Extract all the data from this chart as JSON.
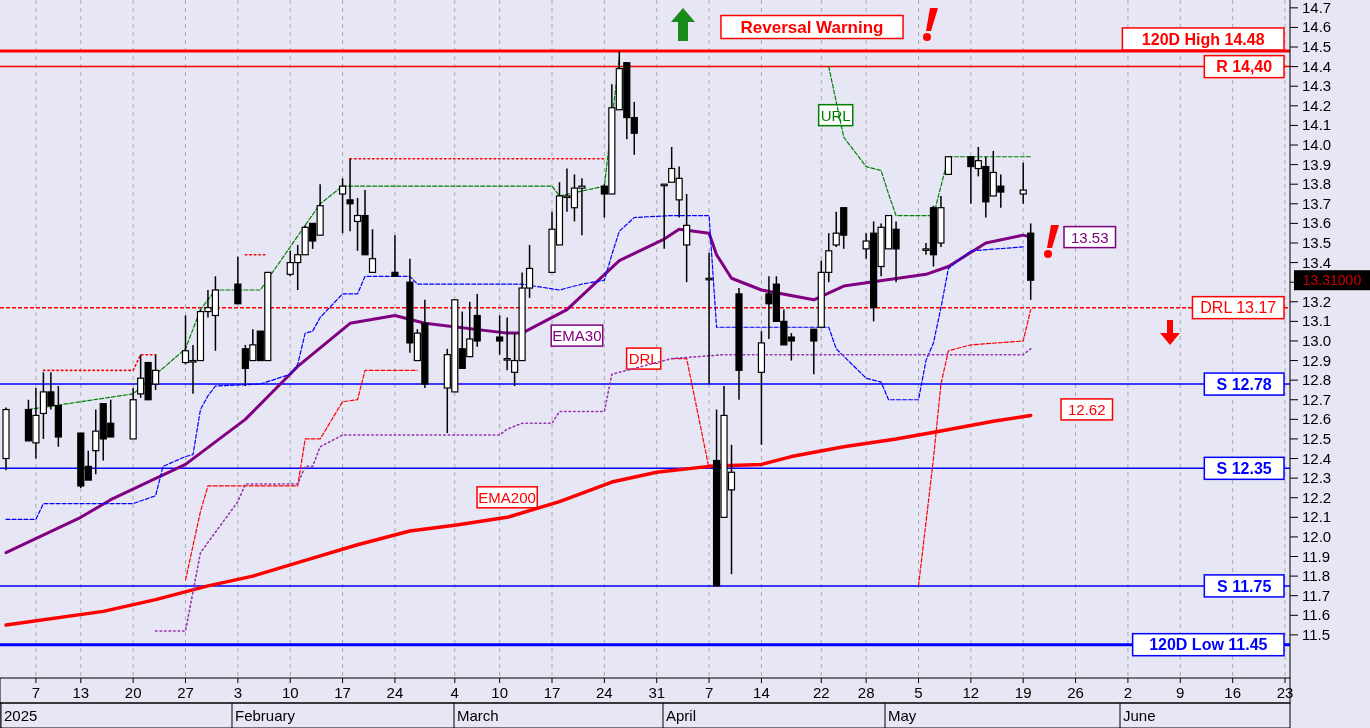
{
  "chart_data": {
    "type": "candlestick",
    "x": [
      "2025-01-03",
      "2025-01-06",
      "2025-01-07",
      "2025-01-08",
      "2025-01-09",
      "2025-01-10",
      "2025-01-13",
      "2025-01-14",
      "2025-01-15",
      "2025-01-16",
      "2025-01-17",
      "2025-01-20",
      "2025-01-21",
      "2025-01-22",
      "2025-01-23",
      "2025-01-27",
      "2025-01-28",
      "2025-01-29",
      "2025-01-30",
      "2025-01-31",
      "2025-02-03",
      "2025-02-04",
      "2025-02-05",
      "2025-02-06",
      "2025-02-07",
      "2025-02-10",
      "2025-02-11",
      "2025-02-12",
      "2025-02-13",
      "2025-02-14",
      "2025-02-17",
      "2025-02-18",
      "2025-02-19",
      "2025-02-20",
      "2025-02-21",
      "2025-02-24",
      "2025-02-26",
      "2025-02-27",
      "2025-02-28",
      "2025-03-03",
      "2025-03-04",
      "2025-03-05",
      "2025-03-06",
      "2025-03-07",
      "2025-03-10",
      "2025-03-11",
      "2025-03-12",
      "2025-03-13",
      "2025-03-14",
      "2025-03-17",
      "2025-03-18",
      "2025-03-19",
      "2025-03-20",
      "2025-03-21",
      "2025-03-24",
      "2025-03-25",
      "2025-03-26",
      "2025-03-27",
      "2025-03-28",
      "2025-04-01",
      "2025-04-02",
      "2025-04-03",
      "2025-04-04",
      "2025-04-07",
      "2025-04-08",
      "2025-04-09",
      "2025-04-10",
      "2025-04-11",
      "2025-04-14",
      "2025-04-15",
      "2025-04-16",
      "2025-04-17",
      "2025-04-18",
      "2025-04-21",
      "2025-04-22",
      "2025-04-23",
      "2025-04-24",
      "2025-04-25",
      "2025-04-28",
      "2025-04-29",
      "2025-04-30",
      "2025-05-01",
      "2025-05-02",
      "2025-05-06",
      "2025-05-07",
      "2025-05-08",
      "2025-05-09",
      "2025-05-12",
      "2025-05-13",
      "2025-05-14",
      "2025-05-15",
      "2025-05-16",
      "2025-05-19",
      "2025-05-20"
    ],
    "ohlc": [
      [
        12.4,
        12.66,
        12.34,
        12.65
      ],
      [
        12.65,
        12.7,
        12.49,
        12.49
      ],
      [
        12.48,
        12.76,
        12.4,
        12.62
      ],
      [
        12.63,
        12.84,
        12.5,
        12.74
      ],
      [
        12.74,
        12.84,
        12.65,
        12.67
      ],
      [
        12.67,
        12.77,
        12.46,
        12.51
      ],
      [
        12.53,
        12.53,
        12.25,
        12.26
      ],
      [
        12.36,
        12.44,
        12.29,
        12.29
      ],
      [
        12.44,
        12.65,
        12.32,
        12.54
      ],
      [
        12.68,
        12.68,
        12.39,
        12.5
      ],
      [
        12.58,
        12.7,
        12.51,
        12.51
      ],
      [
        12.5,
        12.76,
        12.5,
        12.7
      ],
      [
        12.73,
        12.93,
        12.71,
        12.81
      ],
      [
        12.89,
        12.89,
        12.7,
        12.7
      ],
      [
        12.78,
        12.93,
        12.75,
        12.85
      ],
      [
        12.89,
        13.13,
        12.88,
        12.95
      ],
      [
        12.9,
        12.98,
        12.73,
        12.9
      ],
      [
        12.9,
        13.16,
        12.9,
        13.15
      ],
      [
        13.15,
        13.26,
        13.12,
        13.17
      ],
      [
        13.13,
        13.33,
        12.95,
        13.26
      ],
      [
        13.29,
        13.43,
        13.19,
        13.19
      ],
      [
        12.96,
        12.98,
        12.77,
        12.86
      ],
      [
        12.9,
        13.06,
        12.9,
        12.98
      ],
      [
        13.05,
        13.05,
        12.9,
        12.9
      ],
      [
        12.9,
        13.35,
        12.9,
        13.35
      ],
      [
        13.34,
        13.46,
        13.33,
        13.4
      ],
      [
        13.4,
        13.49,
        13.26,
        13.44
      ],
      [
        13.44,
        13.59,
        13.44,
        13.58
      ],
      [
        13.6,
        13.6,
        13.47,
        13.51
      ],
      [
        13.54,
        13.8,
        13.54,
        13.69
      ],
      [
        13.75,
        13.83,
        13.55,
        13.79
      ],
      [
        13.72,
        13.93,
        13.56,
        13.7
      ],
      [
        13.61,
        13.73,
        13.46,
        13.64
      ],
      [
        13.64,
        13.77,
        13.44,
        13.44
      ],
      [
        13.35,
        13.57,
        13.35,
        13.42
      ],
      [
        13.35,
        13.54,
        13.33,
        13.33
      ],
      [
        13.3,
        13.42,
        12.94,
        12.99
      ],
      [
        12.9,
        13.06,
        12.9,
        13.04
      ],
      [
        13.09,
        13.21,
        12.76,
        12.78
      ],
      [
        12.76,
        12.96,
        12.53,
        12.93
      ],
      [
        12.74,
        13.21,
        12.74,
        13.21
      ],
      [
        12.96,
        13.15,
        12.86,
        12.86
      ],
      [
        12.92,
        13.2,
        12.92,
        13.01
      ],
      [
        13.13,
        13.24,
        12.97,
        13.0
      ],
      [
        13.02,
        13.13,
        12.93,
        13.0
      ],
      [
        12.91,
        13.12,
        12.85,
        12.91
      ],
      [
        12.84,
        13.04,
        12.77,
        12.9
      ],
      [
        12.9,
        13.35,
        12.9,
        13.27
      ],
      [
        13.27,
        13.49,
        13.22,
        13.37
      ],
      [
        13.35,
        13.66,
        13.35,
        13.57
      ],
      [
        13.49,
        13.81,
        13.49,
        13.74
      ],
      [
        13.74,
        13.88,
        13.66,
        13.74
      ],
      [
        13.68,
        13.85,
        13.61,
        13.78
      ],
      [
        13.78,
        13.83,
        13.54,
        13.79
      ],
      [
        13.79,
        13.8,
        13.63,
        13.75
      ],
      [
        13.75,
        14.31,
        13.75,
        14.19
      ],
      [
        14.18,
        14.48,
        14.18,
        14.39
      ],
      [
        14.42,
        14.42,
        14.03,
        14.14
      ],
      [
        14.14,
        14.22,
        13.95,
        14.06
      ],
      [
        13.8,
        13.8,
        13.47,
        13.8
      ],
      [
        13.81,
        13.99,
        13.81,
        13.88
      ],
      [
        13.72,
        13.89,
        13.63,
        13.83
      ],
      [
        13.49,
        13.75,
        13.3,
        13.59
      ],
      [
        13.32,
        13.45,
        12.78,
        13.32
      ],
      [
        12.39,
        12.65,
        11.75,
        11.75
      ],
      [
        12.1,
        12.77,
        12.1,
        12.62
      ],
      [
        12.24,
        12.47,
        11.81,
        12.33
      ],
      [
        13.24,
        13.27,
        12.7,
        12.85
      ],
      [
        12.84,
        13.05,
        12.47,
        12.99
      ],
      [
        13.24,
        13.33,
        13.01,
        13.19
      ],
      [
        13.29,
        13.33,
        13.1,
        13.1
      ],
      [
        13.1,
        13.16,
        12.98,
        12.98
      ],
      [
        13.02,
        13.04,
        12.9,
        13.0
      ],
      [
        13.06,
        13.06,
        12.83,
        13.0
      ],
      [
        13.07,
        13.41,
        13.07,
        13.35
      ],
      [
        13.35,
        13.55,
        13.3,
        13.46
      ],
      [
        13.49,
        13.66,
        13.48,
        13.55
      ],
      [
        13.68,
        13.68,
        13.47,
        13.54
      ],
      [
        13.47,
        13.55,
        13.42,
        13.51
      ],
      [
        13.55,
        13.61,
        13.1,
        13.17
      ],
      [
        13.38,
        13.6,
        13.33,
        13.58
      ],
      [
        13.47,
        13.64,
        13.47,
        13.64
      ],
      [
        13.57,
        13.61,
        13.3,
        13.47
      ],
      [
        13.47,
        13.5,
        13.44,
        13.47
      ],
      [
        13.68,
        13.69,
        13.38,
        13.44
      ],
      [
        13.5,
        13.74,
        13.48,
        13.68
      ],
      [
        13.85,
        13.94,
        13.85,
        13.94
      ],
      [
        13.94,
        13.94,
        13.7,
        13.89
      ],
      [
        13.88,
        13.99,
        13.84,
        13.92
      ],
      [
        13.89,
        13.94,
        13.63,
        13.71
      ],
      [
        13.74,
        13.97,
        13.74,
        13.86
      ],
      [
        13.79,
        13.85,
        13.68,
        13.76
      ],
      [
        13.75,
        13.91,
        13.7,
        13.77
      ],
      [
        13.55,
        13.6,
        13.21,
        13.31
      ]
    ],
    "series": [
      {
        "name": "EMA30",
        "type": "line",
        "color": "#800080",
        "line_style": "solid",
        "x": [
          "2025-01-03",
          "2025-01-13",
          "2025-01-17",
          "2025-01-27",
          "2025-02-04",
          "2025-02-11",
          "2025-02-18",
          "2025-02-24",
          "2025-02-28",
          "2025-03-11",
          "2025-03-13",
          "2025-03-19",
          "2025-03-26",
          "2025-04-01",
          "2025-04-03",
          "2025-04-07",
          "2025-04-08",
          "2025-04-10",
          "2025-04-14",
          "2025-04-21",
          "2025-04-25",
          "2025-05-06",
          "2025-05-09",
          "2025-05-14",
          "2025-05-19",
          "2025-05-20"
        ],
        "values": [
          11.92,
          12.1,
          12.19,
          12.37,
          12.6,
          12.87,
          13.09,
          13.13,
          13.09,
          13.04,
          13.04,
          13.16,
          13.41,
          13.52,
          13.57,
          13.55,
          13.44,
          13.32,
          13.26,
          13.21,
          13.28,
          13.34,
          13.38,
          13.5,
          13.54,
          13.53
        ]
      },
      {
        "name": "EMA200",
        "type": "line",
        "color": "#ff0000",
        "line_style": "solid",
        "x": [
          "2025-01-03",
          "2025-01-16",
          "2025-01-23",
          "2025-01-30",
          "2025-02-05",
          "2025-02-12",
          "2025-02-19",
          "2025-02-26",
          "2025-03-04",
          "2025-03-11",
          "2025-03-18",
          "2025-03-25",
          "2025-03-31",
          "2025-04-07",
          "2025-04-14",
          "2025-04-18",
          "2025-04-25",
          "2025-05-02",
          "2025-05-08",
          "2025-05-15",
          "2025-05-20"
        ],
        "values": [
          11.55,
          11.62,
          11.68,
          11.75,
          11.8,
          11.88,
          11.96,
          12.03,
          12.06,
          12.1,
          12.18,
          12.28,
          12.33,
          12.36,
          12.37,
          12.41,
          12.46,
          12.5,
          12.54,
          12.59,
          12.62
        ]
      },
      {
        "name": "URL",
        "type": "line",
        "color": "#008000",
        "line_style": "dashed",
        "x": [
          "2025-01-06",
          "2025-01-20",
          "2025-01-27",
          "2025-01-29",
          "2025-01-31",
          "2025-02-06",
          "2025-02-12",
          "2025-02-14",
          "2025-02-17",
          "2025-03-17",
          "2025-03-18",
          "2025-03-24",
          "2025-03-26",
          "2025-03-27",
          "2025-04-23",
          "2025-04-25",
          "2025-04-28",
          "2025-04-30",
          "2025-05-01",
          "2025-05-02",
          "2025-05-07",
          "2025-05-09",
          "2025-05-20"
        ],
        "values": [
          12.65,
          12.73,
          12.96,
          13.16,
          13.26,
          13.26,
          13.59,
          13.7,
          13.79,
          13.79,
          13.74,
          13.79,
          14.45,
          null,
          14.4,
          14.04,
          13.89,
          13.87,
          13.75,
          13.64,
          13.64,
          13.94,
          13.94
        ]
      },
      {
        "name": "DRL",
        "type": "line",
        "color": "#ff0000",
        "line_style": "dashed",
        "x": [
          "2025-01-27",
          "2025-01-29",
          "2025-01-30",
          "2025-02-11",
          "2025-02-12",
          "2025-02-14",
          "2025-02-17",
          "2025-02-19",
          "2025-02-20",
          "2025-02-27",
          "2025-02-28",
          "2025-03-03",
          "2025-04-02",
          "2025-04-04",
          "2025-04-07",
          "2025-04-08",
          "2025-05-05",
          "2025-05-07",
          "2025-05-08",
          "2025-05-09",
          "2025-05-12",
          "2025-05-19",
          "2025-05-20"
        ],
        "values": [
          11.78,
          12.13,
          12.26,
          12.26,
          12.5,
          12.5,
          12.69,
          12.7,
          12.85,
          12.85,
          null,
          null,
          12.91,
          12.91,
          12.35,
          null,
          11.75,
          12.4,
          12.78,
          12.95,
          12.98,
          13.0,
          13.16
        ]
      },
      {
        "type": "line",
        "color": "#0000ff",
        "line_style": "dashed",
        "x": [
          "2025-01-03",
          "2025-01-07",
          "2025-01-08",
          "2025-01-20",
          "2025-01-23",
          "2025-01-24",
          "2025-01-27",
          "2025-01-28",
          "2025-01-29",
          "2025-01-30",
          "2025-01-31",
          "2025-02-06",
          "2025-02-10",
          "2025-02-11",
          "2025-02-12",
          "2025-02-13",
          "2025-02-14",
          "2025-02-17",
          "2025-02-19",
          "2025-02-20",
          "2025-02-26",
          "2025-02-27",
          "2025-03-13",
          "2025-03-18",
          "2025-03-21",
          "2025-03-24",
          "2025-03-25",
          "2025-03-26",
          "2025-03-28",
          "2025-04-02",
          "2025-04-07",
          "2025-04-08",
          "2025-04-23",
          "2025-04-24",
          "2025-04-28",
          "2025-04-30",
          "2025-05-01",
          "2025-05-05",
          "2025-05-06",
          "2025-05-07",
          "2025-05-08",
          "2025-05-09",
          "2025-05-12",
          "2025-05-19"
        ],
        "values": [
          12.09,
          12.09,
          12.17,
          12.17,
          12.21,
          12.36,
          12.41,
          12.42,
          12.65,
          12.72,
          12.77,
          12.78,
          12.83,
          12.88,
          13.04,
          13.05,
          13.12,
          13.24,
          13.24,
          13.33,
          13.33,
          13.29,
          13.29,
          13.26,
          13.29,
          13.31,
          13.44,
          13.56,
          13.63,
          13.64,
          13.64,
          13.07,
          13.07,
          12.96,
          12.81,
          12.79,
          12.7,
          12.7,
          12.9,
          12.99,
          13.17,
          13.37,
          13.46,
          13.48
        ]
      },
      {
        "type": "line",
        "color": "#9933aa",
        "line_style": "dotted",
        "x": [
          "2025-01-23",
          "2025-01-27",
          "2025-01-29",
          "2025-02-03",
          "2025-02-04",
          "2025-02-11",
          "2025-02-12",
          "2025-02-13",
          "2025-02-14",
          "2025-02-17",
          "2025-03-10",
          "2025-03-11",
          "2025-03-13",
          "2025-03-17",
          "2025-03-18",
          "2025-03-24",
          "2025-03-25",
          "2025-04-02",
          "2025-04-09",
          "2025-05-19",
          "2025-05-20"
        ],
        "values": [
          11.52,
          11.52,
          11.92,
          12.18,
          12.27,
          12.27,
          12.36,
          12.36,
          12.46,
          12.52,
          12.52,
          12.55,
          12.58,
          12.58,
          12.64,
          12.64,
          12.83,
          12.91,
          12.93,
          12.93,
          12.96
        ]
      },
      {
        "type": "line",
        "color": "#ff0000",
        "line_style": "dotted",
        "x": [
          "2025-01-08",
          "2025-01-20",
          "2025-01-21",
          "2025-01-23",
          "2025-01-24",
          "2025-02-04",
          "2025-02-07",
          "2025-02-10",
          "2025-02-18",
          "2025-03-24"
        ],
        "values": [
          12.85,
          12.85,
          12.93,
          12.93,
          null,
          13.44,
          13.44,
          null,
          13.93,
          13.93
        ]
      }
    ],
    "xlim": [
      "2025-01-03",
      "2025-06-23"
    ],
    "xticks": [
      {
        "value": "2025-01-07",
        "label": "7"
      },
      {
        "value": "2025-01-13",
        "label": "13"
      },
      {
        "value": "2025-01-20",
        "label": "20"
      },
      {
        "value": "2025-01-27",
        "label": "27"
      },
      {
        "value": "2025-02-03",
        "label": "3"
      },
      {
        "value": "2025-02-10",
        "label": "10"
      },
      {
        "value": "2025-02-17",
        "label": "17"
      },
      {
        "value": "2025-02-24",
        "label": "24"
      },
      {
        "value": "2025-03-04",
        "label": "4"
      },
      {
        "value": "2025-03-10",
        "label": "10"
      },
      {
        "value": "2025-03-17",
        "label": "17"
      },
      {
        "value": "2025-03-24",
        "label": "24"
      },
      {
        "value": "2025-03-31",
        "label": "31"
      },
      {
        "value": "2025-04-07",
        "label": "7"
      },
      {
        "value": "2025-04-14",
        "label": "14"
      },
      {
        "value": "2025-04-22",
        "label": "22"
      },
      {
        "value": "2025-04-28",
        "label": "28"
      },
      {
        "value": "2025-05-05",
        "label": "5"
      },
      {
        "value": "2025-05-12",
        "label": "12"
      },
      {
        "value": "2025-05-19",
        "label": "19"
      },
      {
        "value": "2025-05-26",
        "label": "26"
      },
      {
        "value": "2025-06-02",
        "label": "2"
      },
      {
        "value": "2025-06-09",
        "label": "9"
      },
      {
        "value": "2025-06-16",
        "label": "16"
      },
      {
        "value": "2025-06-23",
        "label": "23"
      }
    ],
    "ylim": [
      11.28,
      14.74
    ],
    "yticks": [
      11.5,
      11.6,
      11.7,
      11.8,
      11.9,
      {
        "value": 12,
        "label": "12.0"
      },
      12.1,
      12.2,
      12.3,
      12.4,
      12.5,
      12.6,
      12.7,
      12.8,
      12.9,
      {
        "value": 13,
        "label": "13.0"
      },
      13.1,
      13.2,
      {
        "value": 13.3,
        "label": null
      },
      13.4,
      13.5,
      13.6,
      13.7,
      13.8,
      13.9,
      {
        "value": 14,
        "label": "14.0"
      },
      14.1,
      14.2,
      14.3,
      14.4,
      14.5,
      14.6,
      14.7
    ],
    "grid": "x",
    "ref_lines": [
      {
        "axis": "y",
        "value": 14.48,
        "label": "120D High 14.48",
        "color": "#ff0000",
        "line_style": "solid"
      },
      {
        "axis": "y",
        "value": 14.4,
        "label": "R 14,40",
        "color": "#ff0000",
        "line_style": "solid"
      },
      {
        "axis": "y",
        "value": 13.17,
        "label": "DRL 13.17",
        "color": "#ff0000",
        "line_style": "dashed"
      },
      {
        "axis": "y",
        "value": 12.78,
        "label": "S 12.78",
        "color": "#0000ff",
        "line_style": "solid"
      },
      {
        "axis": "y",
        "value": 12.35,
        "label": "S 12.35",
        "color": "#0000ff",
        "line_style": "solid"
      },
      {
        "axis": "y",
        "value": 11.75,
        "label": "S 11.75",
        "color": "#0000ff",
        "line_style": "solid"
      },
      {
        "axis": "y",
        "value": 11.45,
        "label": "120D Low 11.45",
        "color": "#0000ff",
        "line_style": "solid"
      }
    ],
    "annotations": [
      "Reversal Warning",
      "13.53",
      "12.62",
      "13.31000",
      "2025",
      "February",
      "March",
      "April",
      "May",
      "June"
    ]
  }
}
